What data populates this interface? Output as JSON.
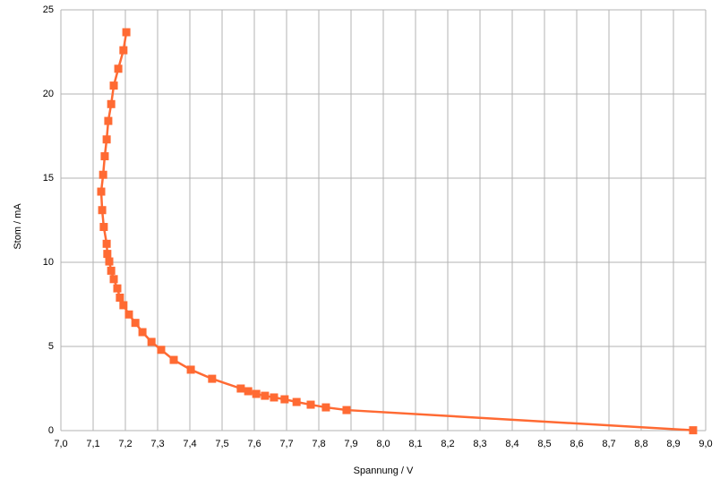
{
  "chart_data": {
    "type": "scatter-line",
    "x_label": "Spannung / V",
    "y_label": "Stom / mA",
    "color": "#ff6a33",
    "grid": true,
    "xlim": [
      7.0,
      9.0
    ],
    "xticks": [
      {
        "value": 7.0,
        "label": "7,0"
      },
      {
        "value": 7.1,
        "label": "7,1"
      },
      {
        "value": 7.2,
        "label": "7,2"
      },
      {
        "value": 7.3,
        "label": "7,3"
      },
      {
        "value": 7.4,
        "label": "7,4"
      },
      {
        "value": 7.5,
        "label": "7,5"
      },
      {
        "value": 7.6,
        "label": "7,6"
      },
      {
        "value": 7.7,
        "label": "7,7"
      },
      {
        "value": 7.8,
        "label": "7,8"
      },
      {
        "value": 7.9,
        "label": "7,9"
      },
      {
        "value": 8.0,
        "label": "8,0"
      },
      {
        "value": 8.1,
        "label": "8,1"
      },
      {
        "value": 8.2,
        "label": "8,2"
      },
      {
        "value": 8.3,
        "label": "8,3"
      },
      {
        "value": 8.4,
        "label": "8,4"
      },
      {
        "value": 8.5,
        "label": "8,5"
      },
      {
        "value": 8.6,
        "label": "8,6"
      },
      {
        "value": 8.7,
        "label": "8,7"
      },
      {
        "value": 8.8,
        "label": "8,8"
      },
      {
        "value": 8.9,
        "label": "8,9"
      },
      {
        "value": 9.0,
        "label": "9,0"
      }
    ],
    "ylim": [
      0,
      25
    ],
    "yticks": [
      0,
      5,
      10,
      15,
      20,
      25
    ],
    "x": [
      7.203,
      7.194,
      7.178,
      7.164,
      7.156,
      7.147,
      7.142,
      7.136,
      7.131,
      7.125,
      7.128,
      7.133,
      7.142,
      7.144,
      7.15,
      7.156,
      7.164,
      7.175,
      7.183,
      7.194,
      7.211,
      7.231,
      7.253,
      7.281,
      7.311,
      7.35,
      7.403,
      7.469,
      7.558,
      7.581,
      7.606,
      7.633,
      7.661,
      7.694,
      7.731,
      7.775,
      7.822,
      7.886,
      8.961
    ],
    "values": [
      23.67,
      22.6,
      21.5,
      20.5,
      19.4,
      18.4,
      17.3,
      16.3,
      15.2,
      14.2,
      13.1,
      12.1,
      11.1,
      10.5,
      10.05,
      9.5,
      9.0,
      8.45,
      7.9,
      7.45,
      6.9,
      6.4,
      5.85,
      5.27,
      4.8,
      4.2,
      3.62,
      3.08,
      2.5,
      2.34,
      2.18,
      2.07,
      1.97,
      1.86,
      1.7,
      1.54,
      1.38,
      1.22,
      0.02
    ]
  }
}
